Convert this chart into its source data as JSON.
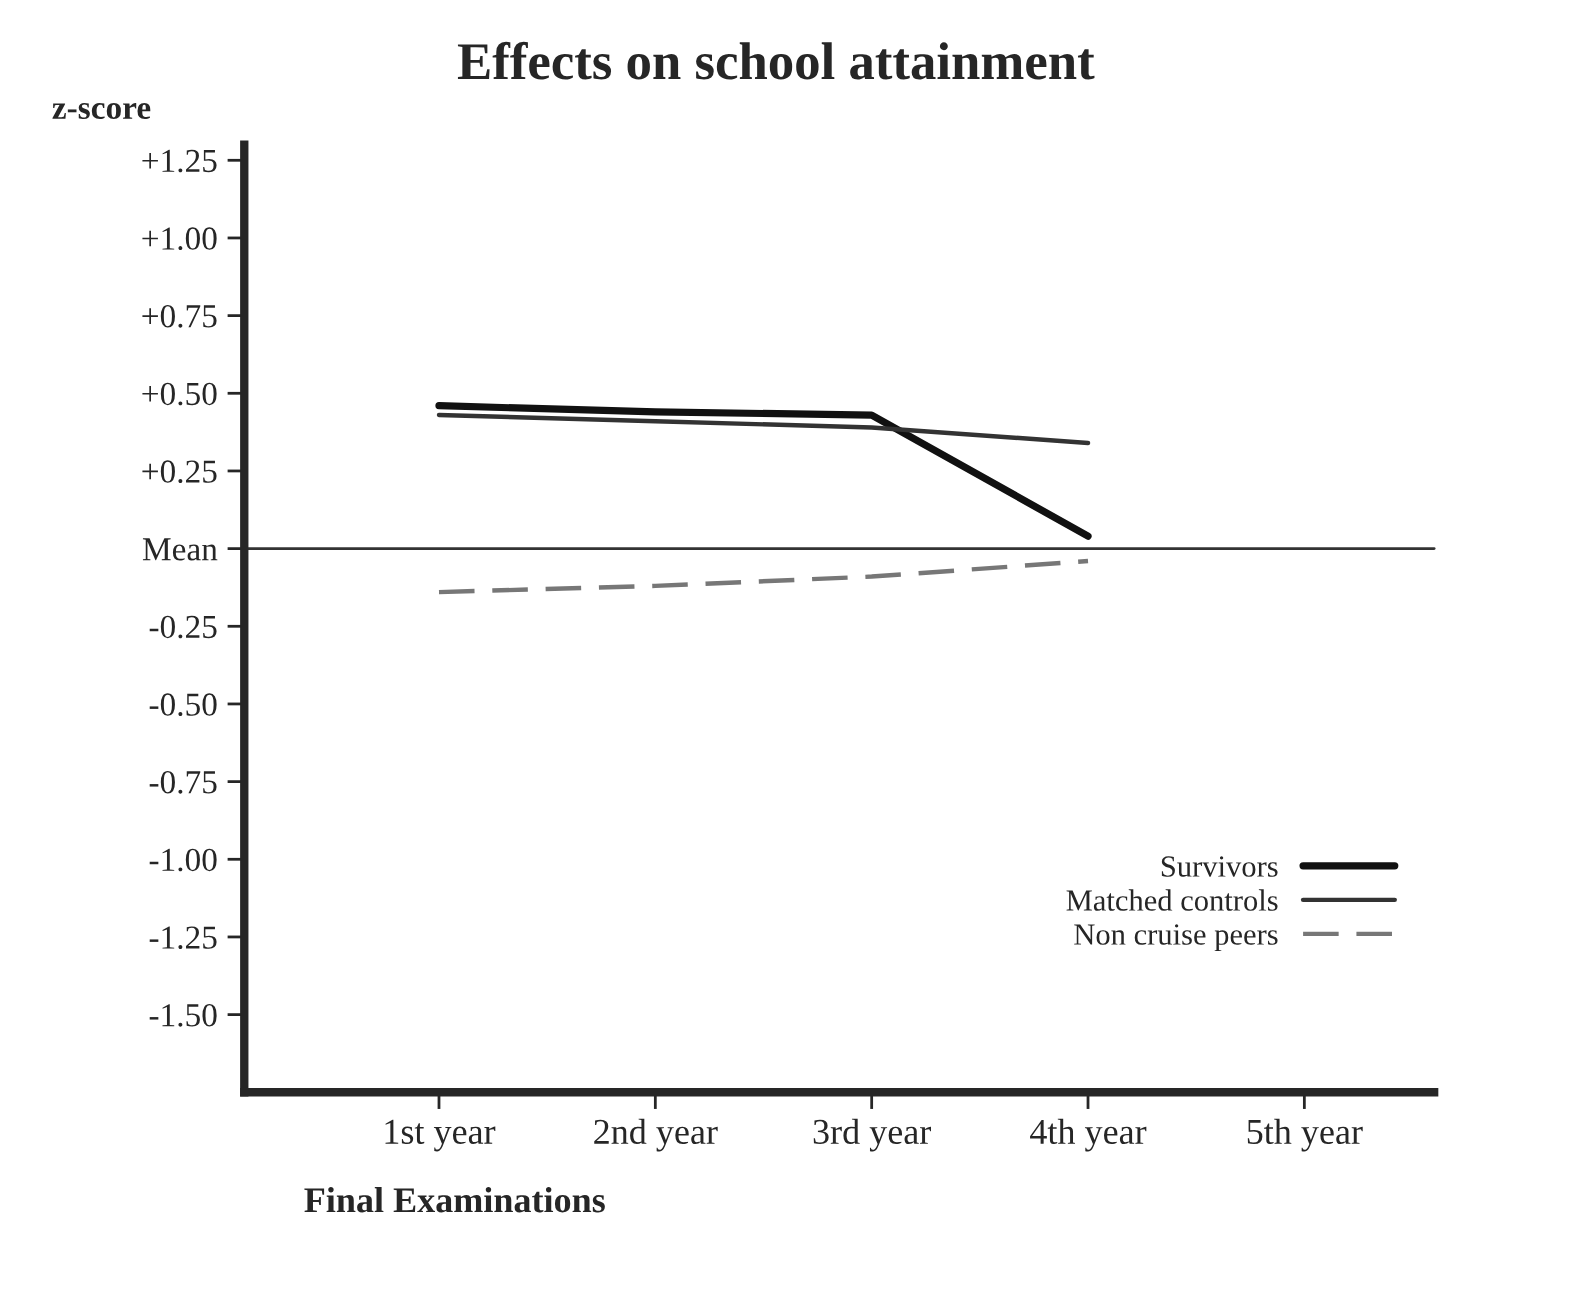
{
  "chart_data": {
    "type": "line",
    "title": "Effects on school attainment",
    "ylabel": "z-score",
    "xlabel": "Final Examinations",
    "categories": [
      "1st year",
      "2nd year",
      "3rd year",
      "4th year",
      "5th year"
    ],
    "series": [
      {
        "name": "Survivors",
        "color": "#111111",
        "values": [
          0.46,
          0.44,
          0.43,
          0.04,
          null
        ],
        "line_style": "solid"
      },
      {
        "name": "Matched controls",
        "color": "#333333",
        "values": [
          0.43,
          0.41,
          0.39,
          0.34,
          null
        ],
        "line_style": "solid"
      },
      {
        "name": "Non cruise peers",
        "color": "#777777",
        "values": [
          -0.14,
          -0.12,
          -0.09,
          -0.04,
          null
        ],
        "line_style": "dashed"
      }
    ],
    "ylim": [
      -1.75,
      1.3
    ],
    "yticks": [
      {
        "value": 1.25,
        "label": "+1.25"
      },
      {
        "value": 1.0,
        "label": "+1.00"
      },
      {
        "value": 0.75,
        "label": "+0.75"
      },
      {
        "value": 0.5,
        "label": "+0.50"
      },
      {
        "value": 0.25,
        "label": "+0.25"
      },
      {
        "value": 0,
        "label": "Mean"
      },
      {
        "value": -0.25,
        "label": "-0.25"
      },
      {
        "value": -0.5,
        "label": "-0.50"
      },
      {
        "value": -0.75,
        "label": "-0.75"
      },
      {
        "value": -1.0,
        "label": "-1.00"
      },
      {
        "value": -1.25,
        "label": "-1.25"
      },
      {
        "value": -1.5,
        "label": "-1.50"
      }
    ],
    "ref_lines": [
      {
        "axis": "y",
        "value": 0,
        "color": "#333333"
      }
    ],
    "grid": false,
    "legend": "bottom right",
    "marker": "none"
  }
}
